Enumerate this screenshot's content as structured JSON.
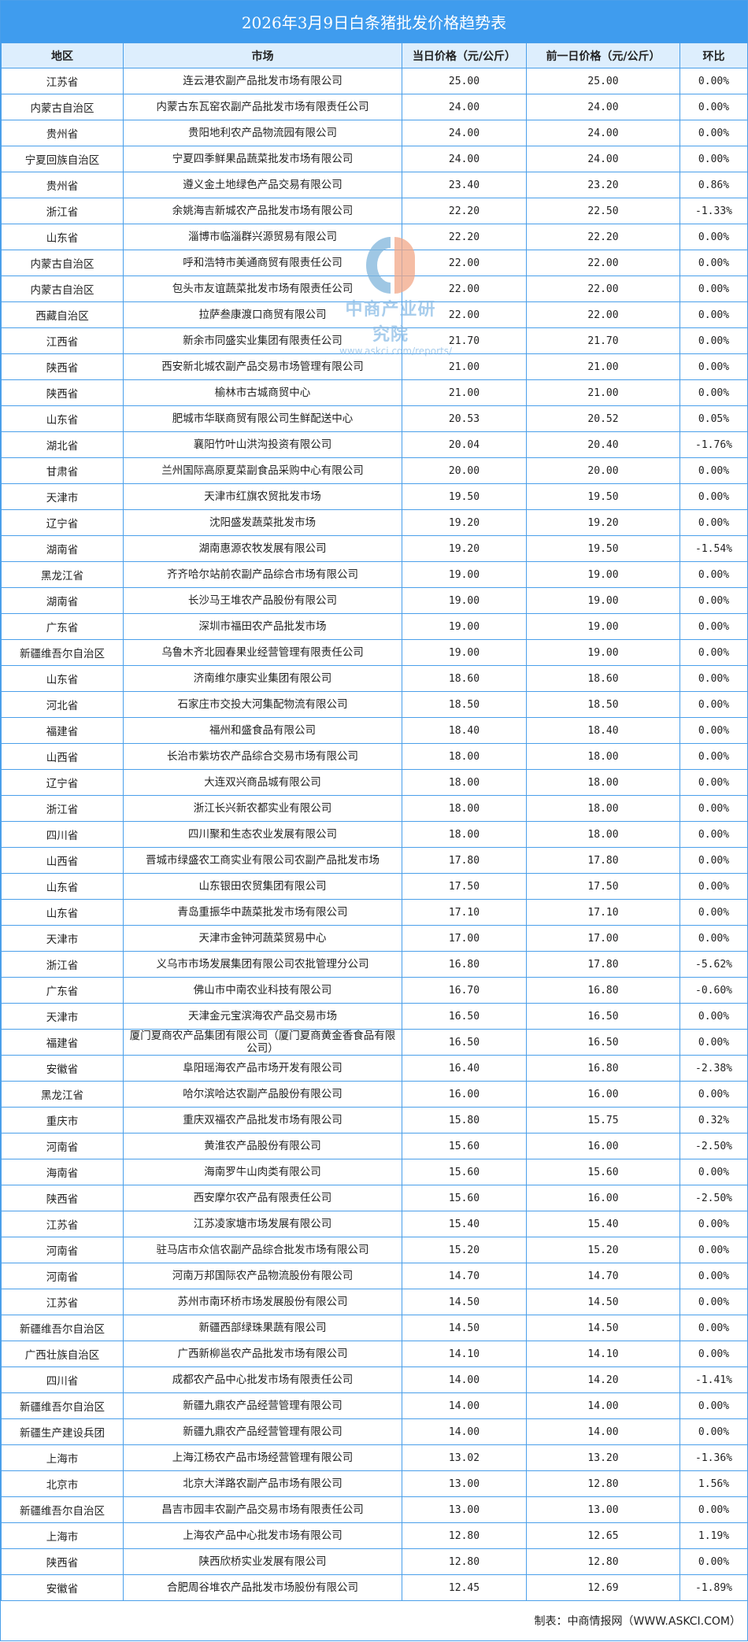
{
  "title": "2026年3月9日白条猪批发价格趋势表",
  "columns": [
    "地区",
    "市场",
    "当日价格（元/公斤）",
    "前一日价格（元/公斤）",
    "环比"
  ],
  "rows": [
    [
      "江苏省",
      "连云港农副产品批发市场有限公司",
      "25.00",
      "25.00",
      "0.00%"
    ],
    [
      "内蒙古自治区",
      "内蒙古东瓦窑农副产品批发市场有限责任公司",
      "24.00",
      "24.00",
      "0.00%"
    ],
    [
      "贵州省",
      "贵阳地利农产品物流园有限公司",
      "24.00",
      "24.00",
      "0.00%"
    ],
    [
      "宁夏回族自治区",
      "宁夏四季鲜果品蔬菜批发市场有限公司",
      "24.00",
      "24.00",
      "0.00%"
    ],
    [
      "贵州省",
      "遵义金土地绿色产品交易有限公司",
      "23.40",
      "23.20",
      "0.86%"
    ],
    [
      "浙江省",
      "余姚海吉新城农产品批发市场有限公司",
      "22.20",
      "22.50",
      "-1.33%"
    ],
    [
      "山东省",
      "淄博市临淄群兴源贸易有限公司",
      "22.20",
      "22.20",
      "0.00%"
    ],
    [
      "内蒙古自治区",
      "呼和浩特市美通商贸有限责任公司",
      "22.00",
      "22.00",
      "0.00%"
    ],
    [
      "内蒙古自治区",
      "包头市友谊蔬菜批发市场有限责任公司",
      "22.00",
      "22.00",
      "0.00%"
    ],
    [
      "西藏自治区",
      "拉萨叁康渡口商贸有限公司",
      "22.00",
      "22.00",
      "0.00%"
    ],
    [
      "江西省",
      "新余市同盛实业集团有限责任公司",
      "21.70",
      "21.70",
      "0.00%"
    ],
    [
      "陕西省",
      "西安新北城农副产品交易市场管理有限公司",
      "21.00",
      "21.00",
      "0.00%"
    ],
    [
      "陕西省",
      "榆林市古城商贸中心",
      "21.00",
      "21.00",
      "0.00%"
    ],
    [
      "山东省",
      "肥城市华联商贸有限公司生鲜配送中心",
      "20.53",
      "20.52",
      "0.05%"
    ],
    [
      "湖北省",
      "襄阳竹叶山洪沟投资有限公司",
      "20.04",
      "20.40",
      "-1.76%"
    ],
    [
      "甘肃省",
      "兰州国际高原夏菜副食品采购中心有限公司",
      "20.00",
      "20.00",
      "0.00%"
    ],
    [
      "天津市",
      "天津市红旗农贸批发市场",
      "19.50",
      "19.50",
      "0.00%"
    ],
    [
      "辽宁省",
      "沈阳盛发蔬菜批发市场",
      "19.20",
      "19.20",
      "0.00%"
    ],
    [
      "湖南省",
      "湖南惠源农牧发展有限公司",
      "19.20",
      "19.50",
      "-1.54%"
    ],
    [
      "黑龙江省",
      "齐齐哈尔站前农副产品综合市场有限公司",
      "19.00",
      "19.00",
      "0.00%"
    ],
    [
      "湖南省",
      "长沙马王堆农产品股份有限公司",
      "19.00",
      "19.00",
      "0.00%"
    ],
    [
      "广东省",
      "深圳市福田农产品批发市场",
      "19.00",
      "19.00",
      "0.00%"
    ],
    [
      "新疆维吾尔自治区",
      "乌鲁木齐北园春果业经营管理有限责任公司",
      "19.00",
      "19.00",
      "0.00%"
    ],
    [
      "山东省",
      "济南维尔康实业集团有限公司",
      "18.60",
      "18.60",
      "0.00%"
    ],
    [
      "河北省",
      "石家庄市交投大河集配物流有限公司",
      "18.50",
      "18.50",
      "0.00%"
    ],
    [
      "福建省",
      "福州和盛食品有限公司",
      "18.40",
      "18.40",
      "0.00%"
    ],
    [
      "山西省",
      "长治市紫坊农产品综合交易市场有限公司",
      "18.00",
      "18.00",
      "0.00%"
    ],
    [
      "辽宁省",
      "大连双兴商品城有限公司",
      "18.00",
      "18.00",
      "0.00%"
    ],
    [
      "浙江省",
      "浙江长兴新农都实业有限公司",
      "18.00",
      "18.00",
      "0.00%"
    ],
    [
      "四川省",
      "四川聚和生态农业发展有限公司",
      "18.00",
      "18.00",
      "0.00%"
    ],
    [
      "山西省",
      "晋城市绿盛农工商实业有限公司农副产品批发市场",
      "17.80",
      "17.80",
      "0.00%"
    ],
    [
      "山东省",
      "山东银田农贸集团有限公司",
      "17.50",
      "17.50",
      "0.00%"
    ],
    [
      "山东省",
      "青岛重振华中蔬菜批发市场有限公司",
      "17.10",
      "17.10",
      "0.00%"
    ],
    [
      "天津市",
      "天津市金钟河蔬菜贸易中心",
      "17.00",
      "17.00",
      "0.00%"
    ],
    [
      "浙江省",
      "义乌市市场发展集团有限公司农批管理分公司",
      "16.80",
      "17.80",
      "-5.62%"
    ],
    [
      "广东省",
      "佛山市中南农业科技有限公司",
      "16.70",
      "16.80",
      "-0.60%"
    ],
    [
      "天津市",
      "天津金元宝滨海农产品交易市场",
      "16.50",
      "16.50",
      "0.00%"
    ],
    [
      "福建省",
      "厦门夏商农产品集团有限公司（厦门夏商黄金香食品有限公司）",
      "16.50",
      "16.50",
      "0.00%"
    ],
    [
      "安徽省",
      "阜阳瑶海农产品市场开发有限公司",
      "16.40",
      "16.80",
      "-2.38%"
    ],
    [
      "黑龙江省",
      "哈尔滨哈达农副产品股份有限公司",
      "16.00",
      "16.00",
      "0.00%"
    ],
    [
      "重庆市",
      "重庆双福农产品批发市场有限公司",
      "15.80",
      "15.75",
      "0.32%"
    ],
    [
      "河南省",
      "黄淮农产品股份有限公司",
      "15.60",
      "16.00",
      "-2.50%"
    ],
    [
      "海南省",
      "海南罗牛山肉类有限公司",
      "15.60",
      "15.60",
      "0.00%"
    ],
    [
      "陕西省",
      "西安摩尔农产品有限责任公司",
      "15.60",
      "16.00",
      "-2.50%"
    ],
    [
      "江苏省",
      "江苏凌家塘市场发展有限公司",
      "15.40",
      "15.40",
      "0.00%"
    ],
    [
      "河南省",
      "驻马店市众信农副产品综合批发市场有限公司",
      "15.20",
      "15.20",
      "0.00%"
    ],
    [
      "河南省",
      "河南万邦国际农产品物流股份有限公司",
      "14.70",
      "14.70",
      "0.00%"
    ],
    [
      "江苏省",
      "苏州市南环桥市场发展股份有限公司",
      "14.50",
      "14.50",
      "0.00%"
    ],
    [
      "新疆维吾尔自治区",
      "新疆西部绿珠果蔬有限公司",
      "14.50",
      "14.50",
      "0.00%"
    ],
    [
      "广西壮族自治区",
      "广西新柳邕农产品批发市场有限公司",
      "14.10",
      "14.10",
      "0.00%"
    ],
    [
      "四川省",
      "成都农产品中心批发市场有限责任公司",
      "14.00",
      "14.20",
      "-1.41%"
    ],
    [
      "新疆维吾尔自治区",
      "新疆九鼎农产品经营管理有限公司",
      "14.00",
      "14.00",
      "0.00%"
    ],
    [
      "新疆生产建设兵团",
      "新疆九鼎农产品经营管理有限公司",
      "14.00",
      "14.00",
      "0.00%"
    ],
    [
      "上海市",
      "上海江杨农产品市场经营管理有限公司",
      "13.02",
      "13.20",
      "-1.36%"
    ],
    [
      "北京市",
      "北京大洋路农副产品市场有限公司",
      "13.00",
      "12.80",
      "1.56%"
    ],
    [
      "新疆维吾尔自治区",
      "昌吉市园丰农副产品交易市场有限责任公司",
      "13.00",
      "13.00",
      "0.00%"
    ],
    [
      "上海市",
      "上海农产品中心批发市场有限公司",
      "12.80",
      "12.65",
      "1.19%"
    ],
    [
      "陕西省",
      "陕西欣桥实业发展有限公司",
      "12.80",
      "12.80",
      "0.00%"
    ],
    [
      "安徽省",
      "合肥周谷堆农产品批发市场股份有限公司",
      "12.45",
      "12.69",
      "-1.89%"
    ]
  ],
  "footer": "制表：中商情报网（WWW.ASKCI.COM）",
  "watermark": {
    "name": "中商产业研究院",
    "url": "www.askci.com/reports/"
  },
  "colors": {
    "title_bg": "#3f9cee",
    "header_bg": "#ddeefd",
    "border": "#4a9fea"
  }
}
